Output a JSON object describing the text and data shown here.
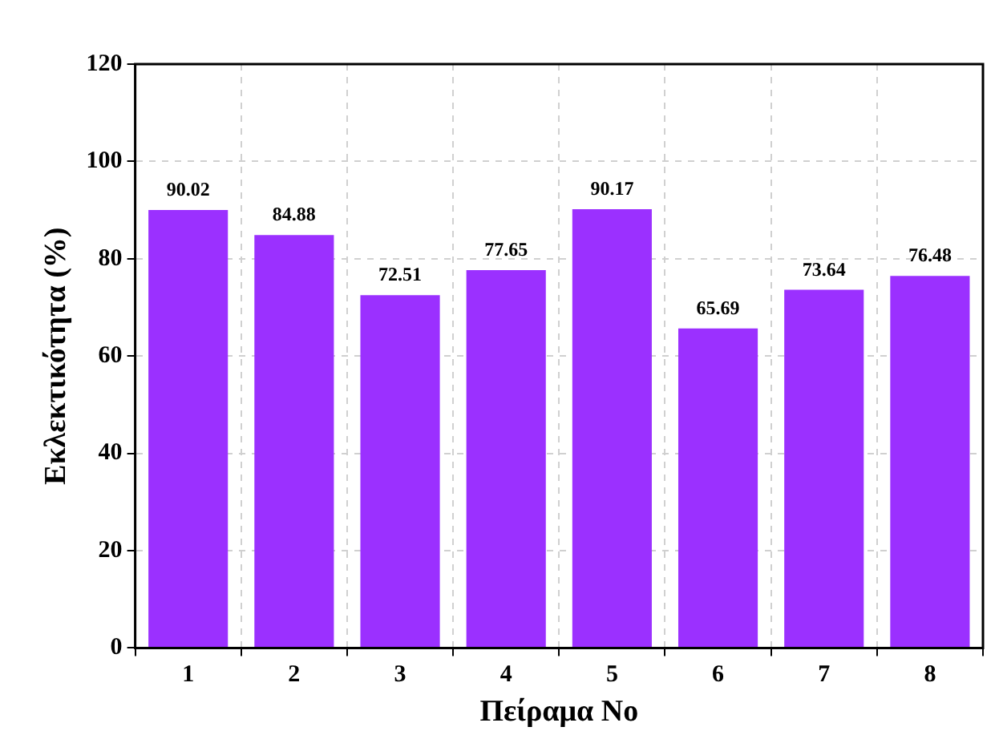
{
  "chart_data": {
    "type": "bar",
    "xlabel": "Πείραμα No",
    "ylabel": "Εκλεκτικότητα (%)",
    "categories": [
      "1",
      "2",
      "3",
      "4",
      "5",
      "6",
      "7",
      "8"
    ],
    "values": [
      90.02,
      84.88,
      72.51,
      77.65,
      90.17,
      65.69,
      73.64,
      76.48
    ],
    "color": "#9b30ff",
    "ylim": [
      0,
      120
    ],
    "yticks": [
      0,
      20,
      40,
      60,
      80,
      100,
      120
    ],
    "grid": true,
    "data_labels": true,
    "legend": false
  }
}
